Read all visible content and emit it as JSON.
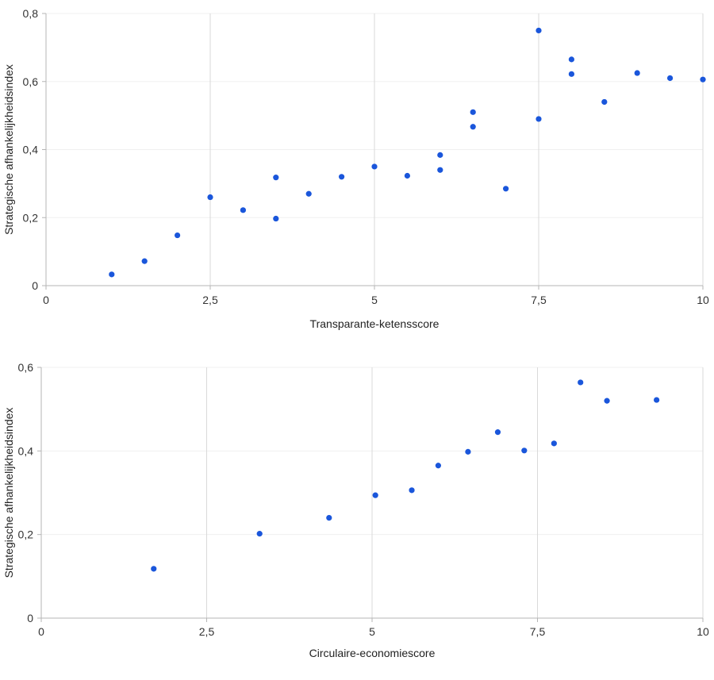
{
  "chart_data": [
    {
      "type": "scatter",
      "title": "",
      "xlabel": "Transparante-ketensscore",
      "ylabel": "Strategische afhankelijkheidsindex",
      "xlim": [
        0,
        10
      ],
      "ylim": [
        0,
        0.8
      ],
      "x_ticks": [
        0,
        2.5,
        5,
        7.5,
        10
      ],
      "x_tick_labels": [
        "0",
        "2,5",
        "5",
        "7,5",
        "10"
      ],
      "y_ticks": [
        0,
        0.2,
        0.4,
        0.6,
        0.8
      ],
      "y_tick_labels": [
        "0",
        "0,2",
        "0,4",
        "0,6",
        "0,8"
      ],
      "grid": "vertical-major",
      "point_color": "#1a56db",
      "points": [
        {
          "x": 1.0,
          "y": 0.033
        },
        {
          "x": 1.5,
          "y": 0.072
        },
        {
          "x": 2.0,
          "y": 0.148
        },
        {
          "x": 2.5,
          "y": 0.26
        },
        {
          "x": 3.0,
          "y": 0.222
        },
        {
          "x": 3.5,
          "y": 0.318
        },
        {
          "x": 3.5,
          "y": 0.197
        },
        {
          "x": 4.0,
          "y": 0.27
        },
        {
          "x": 4.5,
          "y": 0.32
        },
        {
          "x": 5.0,
          "y": 0.35
        },
        {
          "x": 5.5,
          "y": 0.323
        },
        {
          "x": 6.0,
          "y": 0.384
        },
        {
          "x": 6.0,
          "y": 0.34
        },
        {
          "x": 6.5,
          "y": 0.51
        },
        {
          "x": 6.5,
          "y": 0.467
        },
        {
          "x": 7.0,
          "y": 0.285
        },
        {
          "x": 7.5,
          "y": 0.75
        },
        {
          "x": 7.5,
          "y": 0.49
        },
        {
          "x": 8.0,
          "y": 0.665
        },
        {
          "x": 8.0,
          "y": 0.622
        },
        {
          "x": 8.5,
          "y": 0.54
        },
        {
          "x": 9.0,
          "y": 0.625
        },
        {
          "x": 9.5,
          "y": 0.61
        },
        {
          "x": 10.0,
          "y": 0.606
        }
      ]
    },
    {
      "type": "scatter",
      "title": "",
      "xlabel": "Circulaire-economiescore",
      "ylabel": "Strategische afhankelijkheidsindex",
      "xlim": [
        0,
        10
      ],
      "ylim": [
        0,
        0.6
      ],
      "x_ticks": [
        0,
        2.5,
        5,
        7.5,
        10
      ],
      "x_tick_labels": [
        "0",
        "2,5",
        "5",
        "7,5",
        "10"
      ],
      "y_ticks": [
        0,
        0.2,
        0.4,
        0.6
      ],
      "y_tick_labels": [
        "0",
        "0,2",
        "0,4",
        "0,6"
      ],
      "grid": "vertical-major",
      "point_color": "#1a56db",
      "points": [
        {
          "x": 1.7,
          "y": 0.118
        },
        {
          "x": 3.3,
          "y": 0.202
        },
        {
          "x": 4.35,
          "y": 0.24
        },
        {
          "x": 5.05,
          "y": 0.294
        },
        {
          "x": 5.6,
          "y": 0.306
        },
        {
          "x": 6.0,
          "y": 0.365
        },
        {
          "x": 6.45,
          "y": 0.398
        },
        {
          "x": 6.9,
          "y": 0.445
        },
        {
          "x": 7.3,
          "y": 0.401
        },
        {
          "x": 7.75,
          "y": 0.418
        },
        {
          "x": 8.15,
          "y": 0.564
        },
        {
          "x": 8.55,
          "y": 0.52
        },
        {
          "x": 9.3,
          "y": 0.522
        }
      ]
    }
  ]
}
